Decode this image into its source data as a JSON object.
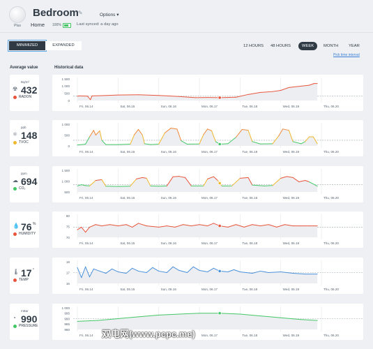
{
  "header": {
    "device_label": "Plus",
    "title": "Bedroom",
    "options_label": "Options ▾",
    "location": "Home",
    "battery": "100%",
    "synced": "Last synced: a day ago"
  },
  "view_toggle": {
    "minimized": "MINIMIZED",
    "expanded": "EXPANDED"
  },
  "periods": {
    "items": [
      "12 HOURS",
      "48 HOURS",
      "WEEK",
      "MONTH",
      "YEAR"
    ],
    "active": "WEEK"
  },
  "pick_interval": "Pick time interval",
  "columns": {
    "average": "Average value",
    "historical": "Historical data"
  },
  "metrics": [
    {
      "name": "RADON",
      "unit": "Bq/m³",
      "value": "432",
      "value_unit": "",
      "icon": "radon-icon",
      "status_color": "#e8553d",
      "y_ticks": [
        "1 500",
        "1 000",
        "500",
        "0"
      ],
      "ylim": [
        0,
        1500
      ],
      "x_labels": [
        "Fri, 06.14",
        "Sat, 06.15",
        "Sun, 06.16",
        "Mon, 06.17",
        "Tue, 06.18",
        "Wed, 06.19",
        "Thu, 06.20"
      ],
      "threshold": 300,
      "marker_day": 3.5,
      "series": [
        [
          0,
          300
        ],
        [
          0.05,
          320
        ],
        [
          0.25,
          300
        ],
        [
          0.32,
          60
        ],
        [
          0.36,
          320
        ],
        [
          0.6,
          340
        ],
        [
          1,
          380
        ],
        [
          1.5,
          400
        ],
        [
          2,
          350
        ],
        [
          2.5,
          280
        ],
        [
          2.9,
          200
        ],
        [
          3.2,
          210
        ],
        [
          3.5,
          200
        ],
        [
          3.9,
          230
        ],
        [
          4.2,
          420
        ],
        [
          4.5,
          560
        ],
        [
          4.8,
          620
        ],
        [
          5,
          700
        ],
        [
          5.2,
          900
        ],
        [
          5.5,
          1000
        ],
        [
          5.7,
          1060
        ],
        [
          5.82,
          1180
        ],
        [
          5.9,
          1180
        ]
      ],
      "colors": "radon"
    },
    {
      "name": "TVOC",
      "unit": "ppb",
      "value": "148",
      "value_unit": "",
      "icon": "tvoc-icon",
      "status_color": "#f0b82d",
      "y_ticks": [
        "1 000",
        "500",
        "0"
      ],
      "ylim": [
        0,
        1000
      ],
      "x_labels": [
        "Fri, 06.14",
        "Sat, 06.15",
        "Sun, 06.16",
        "Mon, 06.17",
        "Tue, 06.18",
        "Wed, 06.19",
        "Thu, 06.20"
      ],
      "threshold": 260,
      "marker_day": 3.5,
      "series": [
        [
          0,
          40
        ],
        [
          0.2,
          80
        ],
        [
          0.3,
          420
        ],
        [
          0.4,
          720
        ],
        [
          0.45,
          500
        ],
        [
          0.55,
          700
        ],
        [
          0.6,
          260
        ],
        [
          0.7,
          60
        ],
        [
          1,
          60
        ],
        [
          1.3,
          80
        ],
        [
          1.4,
          520
        ],
        [
          1.5,
          760
        ],
        [
          1.6,
          500
        ],
        [
          1.65,
          100
        ],
        [
          1.8,
          60
        ],
        [
          2.0,
          80
        ],
        [
          2.15,
          600
        ],
        [
          2.3,
          820
        ],
        [
          2.45,
          780
        ],
        [
          2.55,
          240
        ],
        [
          2.7,
          80
        ],
        [
          3.0,
          90
        ],
        [
          3.1,
          520
        ],
        [
          3.2,
          780
        ],
        [
          3.3,
          700
        ],
        [
          3.4,
          200
        ],
        [
          3.5,
          80
        ],
        [
          3.7,
          100
        ],
        [
          3.9,
          400
        ],
        [
          4.05,
          760
        ],
        [
          4.2,
          720
        ],
        [
          4.3,
          200
        ],
        [
          4.5,
          90
        ],
        [
          4.8,
          100
        ],
        [
          4.95,
          460
        ],
        [
          5.05,
          780
        ],
        [
          5.2,
          720
        ],
        [
          5.3,
          200
        ],
        [
          5.5,
          100
        ],
        [
          5.6,
          200
        ],
        [
          5.7,
          420
        ],
        [
          5.8,
          420
        ],
        [
          5.9,
          100
        ]
      ],
      "colors": "tvoc"
    },
    {
      "name": "CO₂",
      "unit": "ppm",
      "value": "694",
      "value_unit": "",
      "icon": "co2-icon",
      "status_color": "#44c767",
      "y_ticks": [
        "1 500",
        "1 000",
        "500"
      ],
      "ylim": [
        200,
        1700
      ],
      "x_labels": [
        "Fri, 06.14",
        "Sat, 06.15",
        "Sun, 06.16",
        "Mon, 06.17",
        "Tue, 06.18",
        "Wed, 06.19",
        "Thu, 06.20"
      ],
      "threshold": 700,
      "marker_day": 3.5,
      "series": [
        [
          0,
          620
        ],
        [
          0.1,
          700
        ],
        [
          0.2,
          640
        ],
        [
          0.3,
          620
        ],
        [
          0.45,
          1000
        ],
        [
          0.6,
          1050
        ],
        [
          0.7,
          600
        ],
        [
          1,
          580
        ],
        [
          1.3,
          600
        ],
        [
          1.45,
          1100
        ],
        [
          1.6,
          1200
        ],
        [
          1.7,
          1150
        ],
        [
          1.8,
          620
        ],
        [
          2.0,
          600
        ],
        [
          2.2,
          620
        ],
        [
          2.35,
          1250
        ],
        [
          2.5,
          1280
        ],
        [
          2.65,
          1200
        ],
        [
          2.8,
          620
        ],
        [
          3.1,
          620
        ],
        [
          3.2,
          1100
        ],
        [
          3.35,
          1260
        ],
        [
          3.45,
          1000
        ],
        [
          3.55,
          620
        ],
        [
          3.8,
          620
        ],
        [
          4.0,
          1150
        ],
        [
          4.2,
          1200
        ],
        [
          4.3,
          680
        ],
        [
          4.6,
          620
        ],
        [
          4.8,
          650
        ],
        [
          5.0,
          1150
        ],
        [
          5.15,
          1270
        ],
        [
          5.3,
          1200
        ],
        [
          5.45,
          900
        ],
        [
          5.6,
          1000
        ],
        [
          5.7,
          900
        ],
        [
          5.9,
          600
        ]
      ],
      "colors": "co2"
    },
    {
      "name": "HUMIDITY",
      "unit": "",
      "value": "76",
      "value_unit": "%",
      "icon": "humidity-icon",
      "status_color": "#e8553d",
      "y_ticks": [
        "80",
        "75",
        "70"
      ],
      "ylim": [
        68,
        85
      ],
      "x_labels": [
        "Fri, 06.14",
        "Sat, 06.15",
        "Sun, 06.16",
        "Mon, 06.17",
        "Tue, 06.18",
        "Wed, 06.19",
        "Thu, 06.20"
      ],
      "threshold": 76,
      "marker_day": 3.5,
      "series": [
        [
          0,
          74
        ],
        [
          0.1,
          76
        ],
        [
          0.2,
          72
        ],
        [
          0.3,
          76
        ],
        [
          0.45,
          78
        ],
        [
          0.6,
          77
        ],
        [
          0.8,
          78
        ],
        [
          1,
          77
        ],
        [
          1.2,
          78
        ],
        [
          1.35,
          76
        ],
        [
          1.5,
          79
        ],
        [
          1.7,
          77
        ],
        [
          2,
          76
        ],
        [
          2.2,
          77
        ],
        [
          2.4,
          76
        ],
        [
          2.6,
          78
        ],
        [
          2.8,
          77
        ],
        [
          3,
          78
        ],
        [
          3.2,
          77
        ],
        [
          3.35,
          79
        ],
        [
          3.5,
          77
        ],
        [
          3.7,
          76
        ],
        [
          3.9,
          78
        ],
        [
          4.1,
          76
        ],
        [
          4.3,
          78
        ],
        [
          4.5,
          77
        ],
        [
          4.7,
          78
        ],
        [
          4.9,
          76
        ],
        [
          5.1,
          78
        ],
        [
          5.3,
          77
        ],
        [
          5.5,
          77
        ],
        [
          5.7,
          77
        ],
        [
          5.9,
          77
        ]
      ],
      "colors": "humidity"
    },
    {
      "name": "TEMP",
      "unit": "",
      "value": "17",
      "value_unit": "°",
      "icon": "temp-icon",
      "status_color": "#e8553d",
      "y_ticks": [
        "18",
        "17",
        "16"
      ],
      "ylim": [
        15.6,
        18.6
      ],
      "x_labels": [
        "Fri, 06.14",
        "Sat, 06.15",
        "Sun, 06.16",
        "Mon, 06.17",
        "Tue, 06.18",
        "Wed, 06.19",
        "Thu, 06.20"
      ],
      "threshold": 17.1,
      "marker_day": 3.5,
      "series": [
        [
          0,
          17.8
        ],
        [
          0.1,
          16.4
        ],
        [
          0.2,
          17.9
        ],
        [
          0.3,
          16.5
        ],
        [
          0.4,
          17.6
        ],
        [
          0.55,
          17.3
        ],
        [
          0.7,
          17.0
        ],
        [
          0.85,
          17.6
        ],
        [
          1,
          17.2
        ],
        [
          1.2,
          17.0
        ],
        [
          1.35,
          17.7
        ],
        [
          1.5,
          17.3
        ],
        [
          1.7,
          17.1
        ],
        [
          1.85,
          17.8
        ],
        [
          2,
          17.3
        ],
        [
          2.2,
          17.1
        ],
        [
          2.35,
          17.9
        ],
        [
          2.5,
          17.4
        ],
        [
          2.7,
          17.1
        ],
        [
          2.85,
          17.9
        ],
        [
          3,
          17.4
        ],
        [
          3.2,
          17.2
        ],
        [
          3.35,
          17.7
        ],
        [
          3.5,
          17.3
        ],
        [
          3.7,
          17.2
        ],
        [
          3.85,
          17.5
        ],
        [
          4,
          17.2
        ],
        [
          4.3,
          17.0
        ],
        [
          4.5,
          17.3
        ],
        [
          4.7,
          17.1
        ],
        [
          5,
          17.2
        ],
        [
          5.3,
          17.0
        ],
        [
          5.6,
          16.9
        ],
        [
          5.9,
          16.9
        ]
      ],
      "colors": "temp"
    },
    {
      "name": "PRESSURE",
      "unit": "mBar",
      "value": "990",
      "value_unit": "",
      "icon": "pressure-icon",
      "status_color": "#44c767",
      "y_ticks": [
        "1 000",
        "995",
        "990",
        "985",
        "980"
      ],
      "ylim": [
        978,
        1002
      ],
      "x_labels": [
        "Fri, 06.14",
        "Sat, 06.15",
        "Sun, 06.16",
        "Mon, 06.17",
        "Tue, 06.18",
        "Wed, 06.19",
        "Thu, 06.20"
      ],
      "threshold": 990,
      "marker_day": 3.5,
      "series": [
        [
          0,
          987
        ],
        [
          0.5,
          988
        ],
        [
          1,
          990
        ],
        [
          1.5,
          992
        ],
        [
          2,
          994
        ],
        [
          2.5,
          995
        ],
        [
          3,
          996
        ],
        [
          3.5,
          996
        ],
        [
          4,
          995
        ],
        [
          4.5,
          993
        ],
        [
          5,
          991
        ],
        [
          5.5,
          989
        ],
        [
          5.9,
          988
        ]
      ],
      "colors": "pressure"
    }
  ],
  "watermark": "双电网(www.pcpc.me)"
}
